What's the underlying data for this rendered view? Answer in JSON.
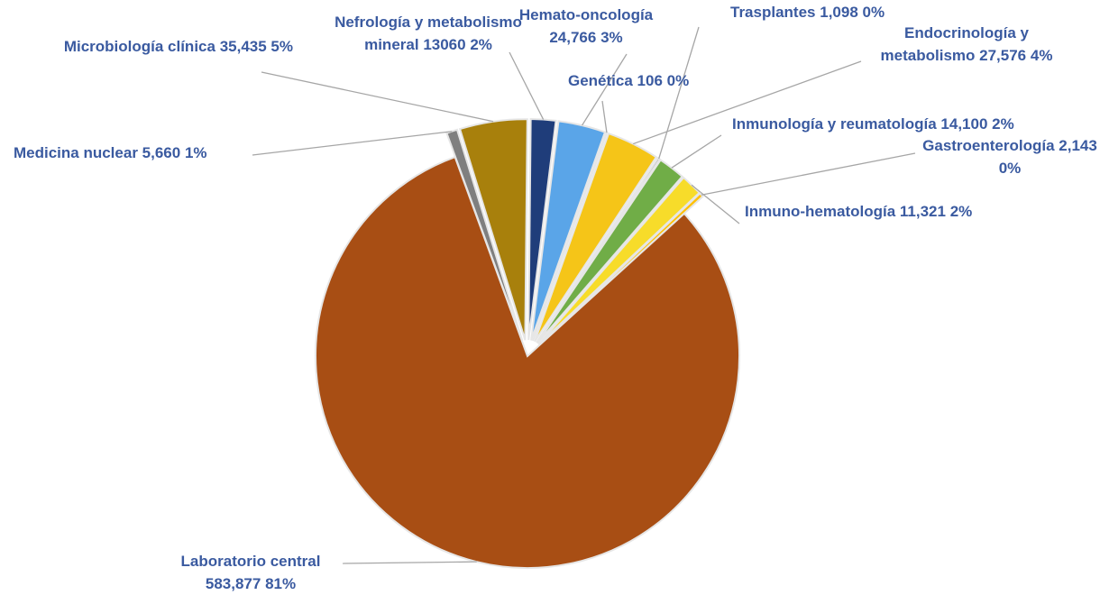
{
  "chart_data": {
    "type": "pie",
    "categories": [
      "Nefrología y metabolismo mineral",
      "Hemato-oncología",
      "Genética",
      "Endocrinología y metabolismo",
      "Trasplantes",
      "Inmunología y reumatología",
      "Inmuno-hematología",
      "Gastroenterología",
      "Laboratorio central",
      "Medicina nuclear",
      "Microbiología clínica"
    ],
    "values": [
      13060,
      24766,
      106,
      27576,
      1098,
      14100,
      11321,
      2143,
      583877,
      5660,
      35435
    ],
    "value_labels": [
      "13060",
      "24,766",
      "106",
      "27,576",
      "1,098",
      "14,100",
      "11,321",
      "2,143",
      "583,877",
      "5,660",
      "35,435"
    ],
    "percent_labels": [
      "2%",
      "3%",
      "0%",
      "4%",
      "0%",
      "2%",
      "2%",
      "0%",
      "81%",
      "1%",
      "5%"
    ],
    "colors": [
      "#1f3d7a",
      "#5aa5e8",
      "#bfbfbf",
      "#f5c518",
      "#8c8c8c",
      "#70ad47",
      "#f7dc2a",
      "#ffc000",
      "#a84e14",
      "#7f7f7f",
      "#a8800c"
    ]
  }
}
